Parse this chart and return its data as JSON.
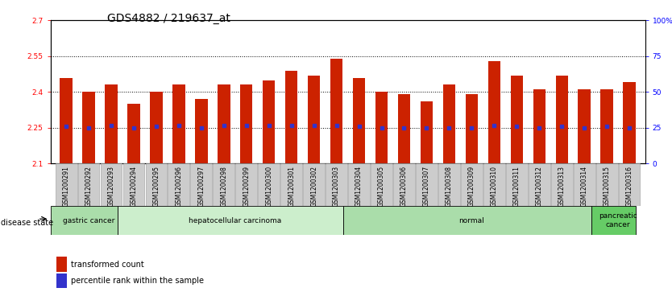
{
  "title": "GDS4882 / 219637_at",
  "samples": [
    "GSM1200291",
    "GSM1200292",
    "GSM1200293",
    "GSM1200294",
    "GSM1200295",
    "GSM1200296",
    "GSM1200297",
    "GSM1200298",
    "GSM1200299",
    "GSM1200300",
    "GSM1200301",
    "GSM1200302",
    "GSM1200303",
    "GSM1200304",
    "GSM1200305",
    "GSM1200306",
    "GSM1200307",
    "GSM1200308",
    "GSM1200309",
    "GSM1200310",
    "GSM1200311",
    "GSM1200312",
    "GSM1200313",
    "GSM1200314",
    "GSM1200315",
    "GSM1200316"
  ],
  "bar_values": [
    2.46,
    2.4,
    2.43,
    2.35,
    2.4,
    2.43,
    2.37,
    2.43,
    2.43,
    2.45,
    2.49,
    2.47,
    2.54,
    2.46,
    2.4,
    2.39,
    2.36,
    2.43,
    2.39,
    2.53,
    2.47,
    2.41,
    2.47,
    2.41,
    2.41,
    2.44
  ],
  "percentile_values": [
    2.255,
    2.25,
    2.26,
    2.25,
    2.255,
    2.26,
    2.25,
    2.26,
    2.26,
    2.26,
    2.26,
    2.26,
    2.26,
    2.255,
    2.25,
    2.25,
    2.25,
    2.25,
    2.25,
    2.26,
    2.255,
    2.25,
    2.255,
    2.25,
    2.255,
    2.25
  ],
  "bar_color": "#cc2200",
  "dot_color": "#3333cc",
  "ylim_left": [
    2.1,
    2.7
  ],
  "yticks_left": [
    2.1,
    2.25,
    2.4,
    2.55,
    2.7
  ],
  "ytick_labels_left": [
    "2.1",
    "2.25",
    "2.4",
    "2.55",
    "2.7"
  ],
  "ylim_right": [
    0,
    100
  ],
  "yticks_right": [
    0,
    25,
    50,
    75,
    100
  ],
  "ytick_labels_right": [
    "0",
    "25",
    "50",
    "75",
    "100%"
  ],
  "hlines": [
    2.25,
    2.4,
    2.55
  ],
  "disease_groups": [
    {
      "label": "gastric cancer",
      "start": 0,
      "end": 3,
      "color": "#aaddaa"
    },
    {
      "label": "hepatocellular carcinoma",
      "start": 3,
      "end": 13,
      "color": "#cceecc"
    },
    {
      "label": "normal",
      "start": 13,
      "end": 24,
      "color": "#aaddaa"
    },
    {
      "label": "pancreatic\ncancer",
      "start": 24,
      "end": 26,
      "color": "#66cc66"
    }
  ],
  "disease_state_label": "disease state",
  "bar_width": 0.55,
  "background_color": "#ffffff",
  "title_fontsize": 10,
  "tick_fontsize": 6.5,
  "xtick_fontsize": 6,
  "label_fontsize": 8
}
